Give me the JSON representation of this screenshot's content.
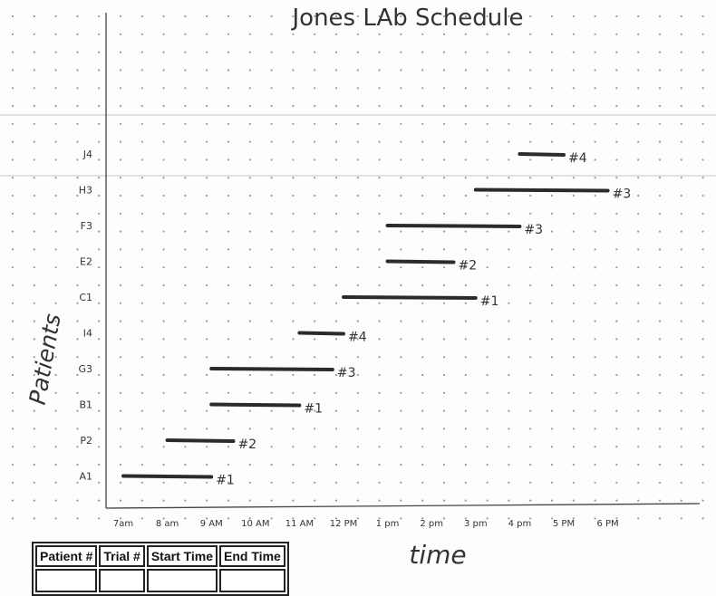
{
  "chart_data": {
    "type": "gantt",
    "title": "Jones LAb Schedule",
    "xlabel": "time",
    "ylabel": "Patients",
    "x_ticks": [
      "7am",
      "8 am",
      "9 AM",
      "10 AM",
      "11 AM",
      "12 PM",
      "1 pm",
      "2 pm",
      "3 pm",
      "4 pm",
      "5 PM",
      "6 PM"
    ],
    "y_categories": [
      "A1",
      "P2",
      "B1",
      "G3",
      "I4",
      "C1",
      "E2",
      "F3",
      "H3",
      "J4"
    ],
    "grid": "dotted",
    "bars": [
      {
        "patient": "A1",
        "start": 7.0,
        "end": 9.0,
        "label": "#1"
      },
      {
        "patient": "P2",
        "start": 8.0,
        "end": 9.5,
        "label": "#2"
      },
      {
        "patient": "B1",
        "start": 9.0,
        "end": 11.0,
        "label": "#1"
      },
      {
        "patient": "G3",
        "start": 9.0,
        "end": 11.75,
        "label": "#3"
      },
      {
        "patient": "I4",
        "start": 11.0,
        "end": 12.0,
        "label": "#4"
      },
      {
        "patient": "C1",
        "start": 12.0,
        "end": 15.0,
        "label": "#1"
      },
      {
        "patient": "E2",
        "start": 13.0,
        "end": 14.5,
        "label": "#2"
      },
      {
        "patient": "F3",
        "start": 13.0,
        "end": 16.0,
        "label": "#3"
      },
      {
        "patient": "H3",
        "start": 15.0,
        "end": 18.0,
        "label": "#3"
      },
      {
        "patient": "J4",
        "start": 16.0,
        "end": 17.0,
        "label": "#4"
      }
    ]
  },
  "table": {
    "headers": [
      "Patient #",
      "Trial #",
      "Start Time",
      "End Time"
    ]
  }
}
